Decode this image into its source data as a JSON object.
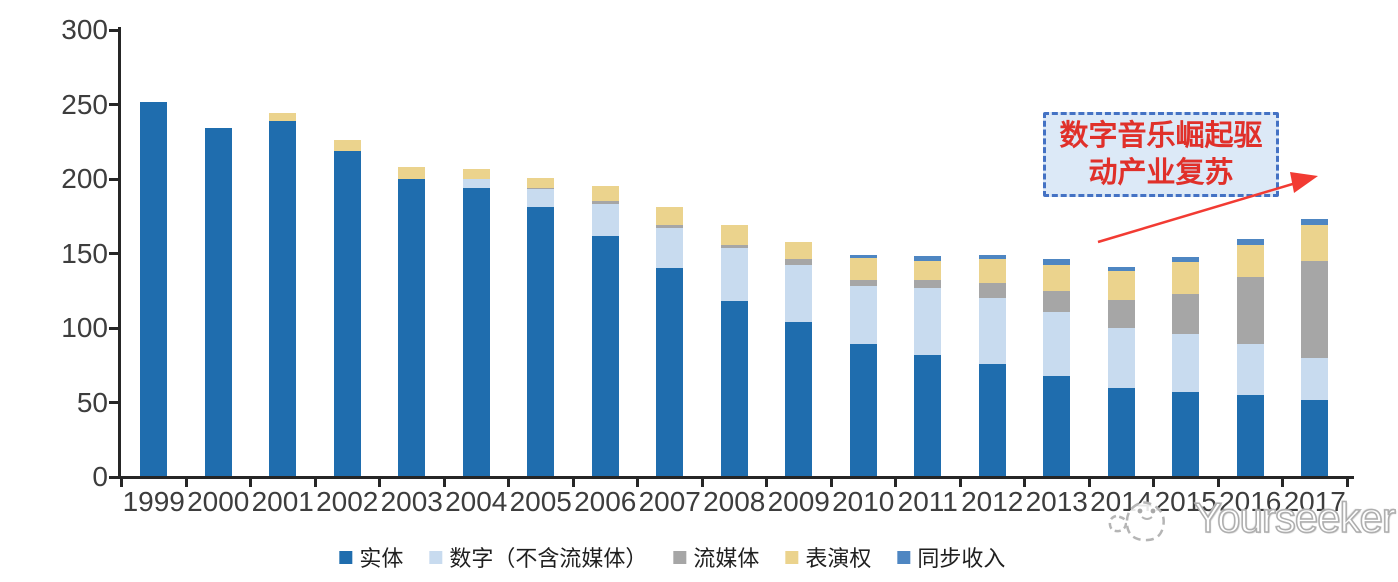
{
  "chart_data": {
    "type": "bar",
    "stacked": true,
    "categories": [
      "1999",
      "2000",
      "2001",
      "2002",
      "2003",
      "2004",
      "2005",
      "2006",
      "2007",
      "2008",
      "2009",
      "2010",
      "2011",
      "2012",
      "2013",
      "2014",
      "2015",
      "2016",
      "2017"
    ],
    "series": [
      {
        "name": "实体",
        "color": "#1F6DAE",
        "values": [
          252,
          234,
          239,
          219,
          200,
          194,
          181,
          162,
          140,
          118,
          104,
          89,
          82,
          76,
          68,
          60,
          57,
          55,
          52
        ]
      },
      {
        "name": "数字（不含流媒体）",
        "color": "#C8DBEF",
        "values": [
          0,
          0,
          0,
          0,
          0,
          6,
          12,
          21,
          27,
          36,
          38,
          39,
          45,
          44,
          43,
          40,
          39,
          34,
          28
        ]
      },
      {
        "name": "流媒体",
        "color": "#A6A6A6",
        "values": [
          0,
          0,
          0,
          0,
          0,
          0,
          1,
          2,
          2,
          2,
          4,
          4,
          5,
          10,
          14,
          19,
          27,
          45,
          65
        ]
      },
      {
        "name": "表演权",
        "color": "#EBD38D",
        "values": [
          0,
          0,
          5,
          7,
          8,
          7,
          7,
          10,
          12,
          13,
          12,
          15,
          13,
          16,
          17,
          19,
          21,
          22,
          24
        ]
      },
      {
        "name": "同步收入",
        "color": "#4E86C2",
        "values": [
          0,
          0,
          0,
          0,
          0,
          0,
          0,
          0,
          0,
          0,
          0,
          2,
          3,
          3,
          4,
          3,
          4,
          4,
          4
        ]
      }
    ],
    "ylim": [
      0,
      300
    ],
    "yticks": [
      0,
      50,
      100,
      150,
      200,
      250,
      300
    ],
    "xlabel": "",
    "ylabel": "",
    "title": "",
    "grid": false,
    "legend_position": "bottom"
  },
  "annotation": {
    "line1": "数字音乐崛起驱",
    "line2": "动产业复苏",
    "border_color": "#4472C4",
    "fill_color": "#DCE9F7",
    "text_color": "#E0302A",
    "arrow_color": "#F23B33"
  },
  "watermark": {
    "text": "Yourseeker"
  }
}
